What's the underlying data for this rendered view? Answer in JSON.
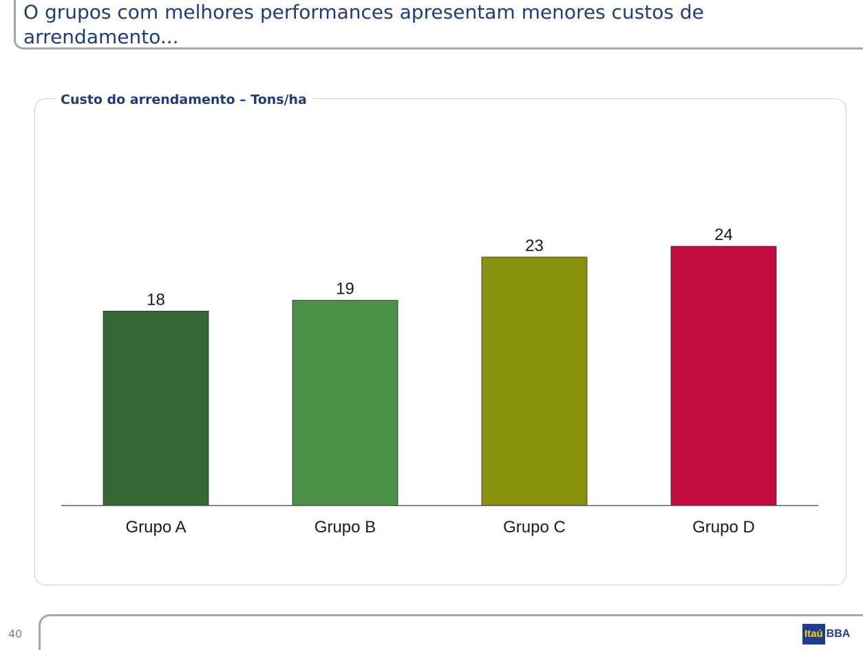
{
  "slide": {
    "title": "O grupos com melhores performances apresentam menores custos de arrendamento...",
    "page_number": "40"
  },
  "logo": {
    "box_text": "Itaú",
    "text": "BBA",
    "colors": {
      "box": "#1f3b8f",
      "box_text": "#ffd200",
      "text": "#1f3b8f"
    }
  },
  "chart_data": {
    "type": "bar",
    "title": "Custo do arrendamento – Tons/ha",
    "categories": [
      "Grupo A",
      "Grupo B",
      "Grupo C",
      "Grupo D"
    ],
    "values": [
      18,
      19,
      23,
      24
    ],
    "colors": [
      "#346936",
      "#4a9248",
      "#8a910f",
      "#c20c3e"
    ],
    "xlabel": "",
    "ylabel": "",
    "ylim": [
      0,
      31.2
    ],
    "grid": false,
    "legend": "none",
    "data_labels": true
  }
}
